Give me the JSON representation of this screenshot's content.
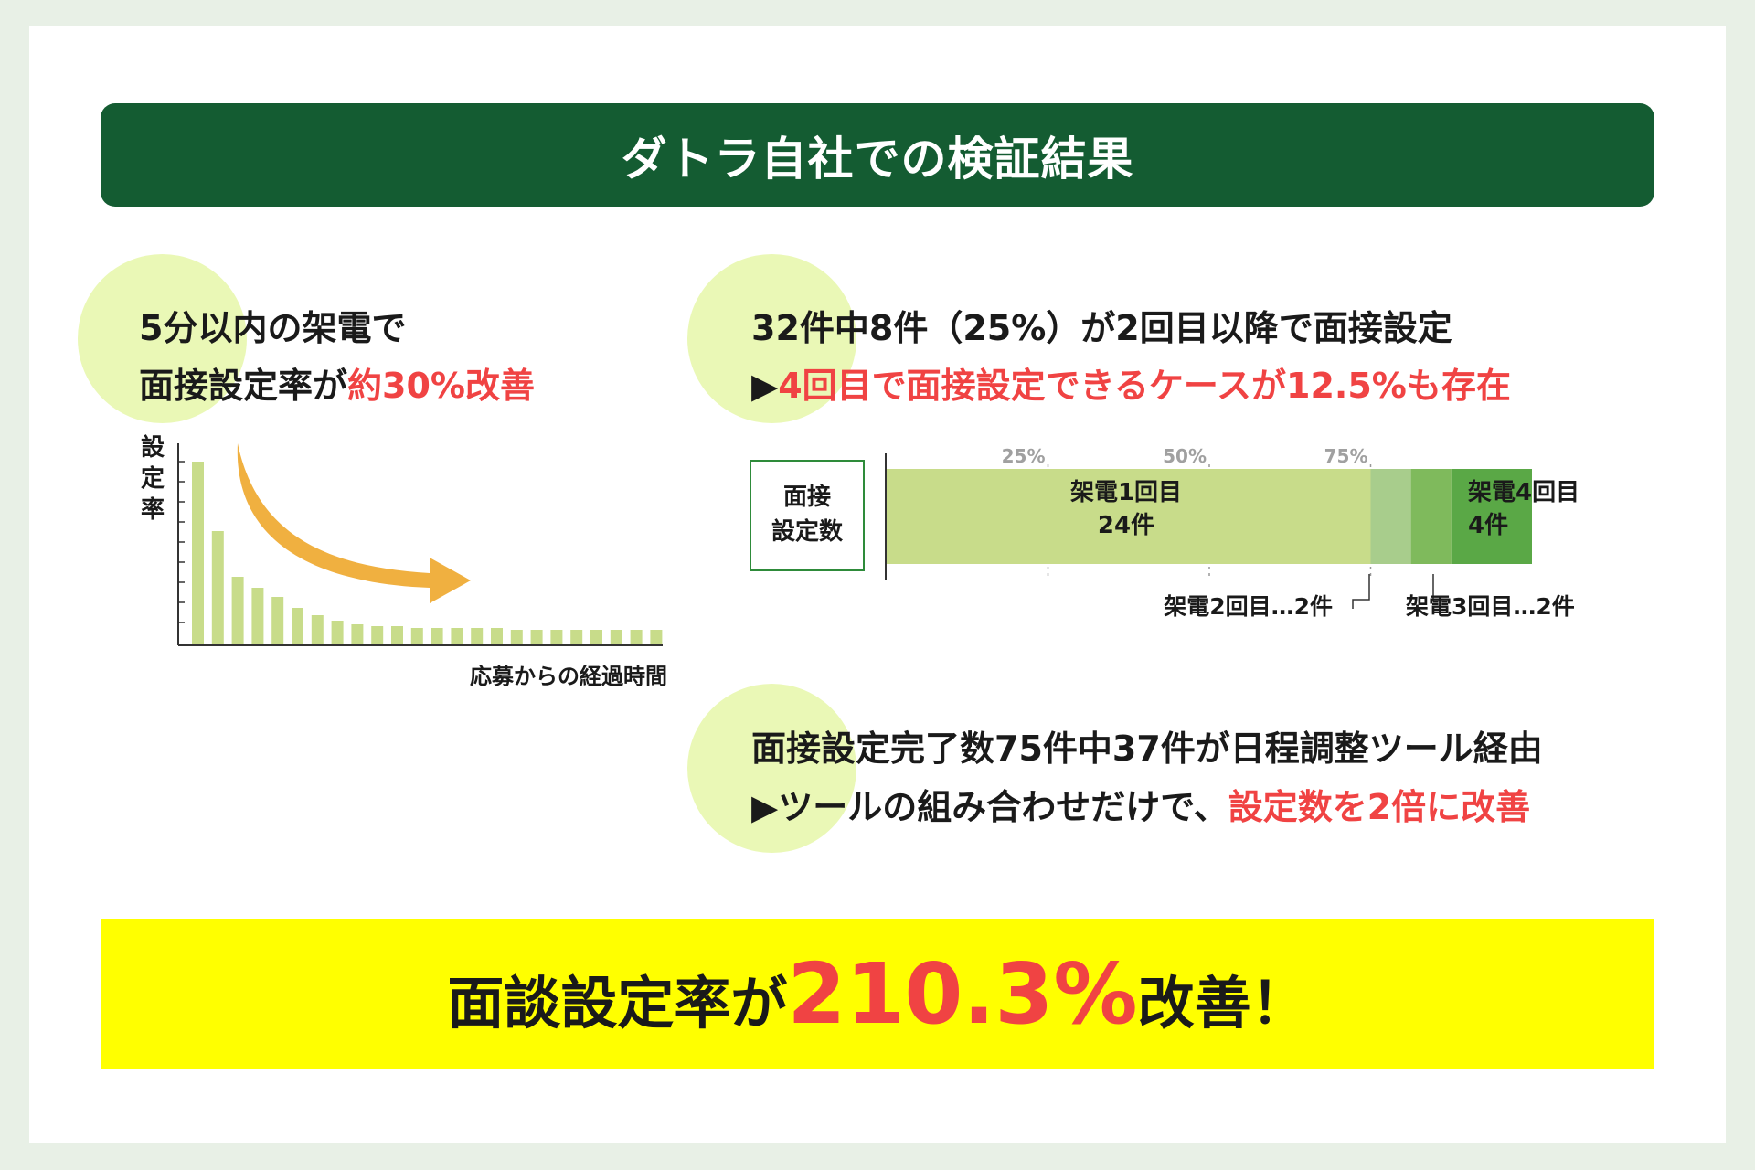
{
  "title": "ダトラ自社での検証結果",
  "left_block": {
    "line1": "5分以内の架電で",
    "line2_prefix": "面接設定率が",
    "line2_highlight": "約30%改善"
  },
  "decay_chart": {
    "type": "bar",
    "ylabel": "設定率",
    "xlabel": "応募からの経過時間",
    "values": [
      100,
      62,
      37,
      31,
      26,
      20,
      16,
      13,
      11,
      10,
      10,
      9,
      9,
      9,
      9,
      9,
      8,
      8,
      8,
      8,
      8,
      8,
      8,
      8
    ],
    "arrow_color": "#f0b040",
    "bar_color": "#c8dc8a"
  },
  "right_block1": {
    "line1": "32件中8件（25%）が2回目以降で面接設定",
    "line2_prefix": "▶",
    "line2_highlight": "4回目で面接設定できるケースが12.5%も存在"
  },
  "stacked_chart": {
    "type": "bar",
    "box_label_line1": "面接",
    "box_label_line2": "設定数",
    "ticks": [
      "25%",
      "50%",
      "75%"
    ],
    "segments": [
      {
        "name": "架電1回目",
        "value": 24,
        "label_count": "24件",
        "color": "#c8dc8a"
      },
      {
        "name": "架電2回目",
        "value": 2,
        "color": "#a8cd8c"
      },
      {
        "name": "架電3回目",
        "value": 2,
        "color": "#7fba5c"
      },
      {
        "name": "架電4回目",
        "value": 4,
        "label_count": "4件",
        "color": "#5aa846"
      }
    ],
    "callout2": "架電2回目…2件",
    "callout3": "架電3回目…2件"
  },
  "right_block2": {
    "line1": "面接設定完了数75件中37件が日程調整ツール経由",
    "line2_prefix": "▶ツールの組み合わせだけで、",
    "line2_highlight": "設定数を2倍に改善"
  },
  "banner": {
    "prefix": "面談設定率が",
    "highlight": "210.3%",
    "suffix": "改善！"
  },
  "colors": {
    "title_bg": "#145c32",
    "accent_red": "#f04343",
    "banner_bg": "#ffff00",
    "circle": "#eaf8b6"
  }
}
